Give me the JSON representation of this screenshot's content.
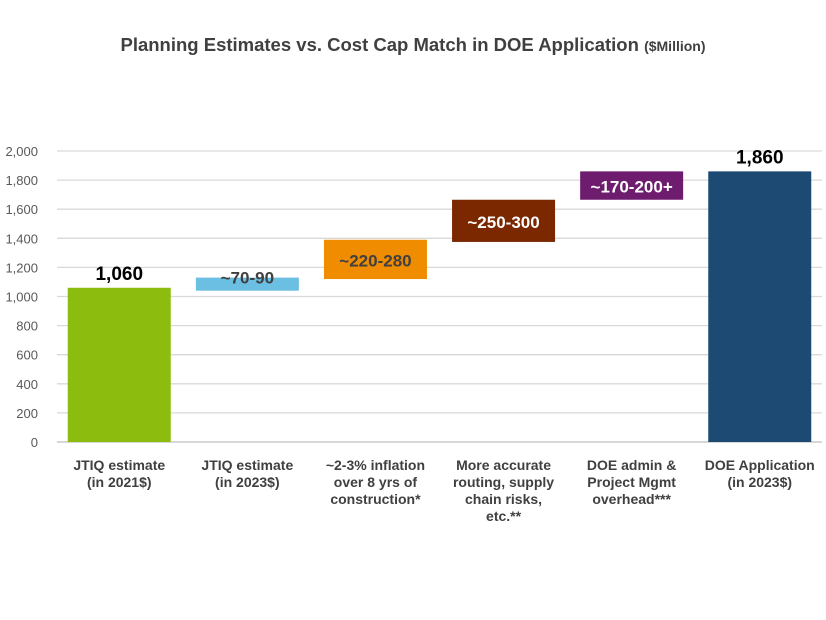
{
  "chart_data": {
    "type": "waterfall",
    "title": "Planning Estimates vs. Cost Cap Match in DOE Application",
    "title_unit": "($Million)",
    "ylim": [
      0,
      2000
    ],
    "yticks": [
      "0",
      "200",
      "400",
      "600",
      "800",
      "1,000",
      "1,200",
      "1,400",
      "1,600",
      "1,800",
      "2,000"
    ],
    "grid": true,
    "categories": [
      "JTIQ estimate\n(in 2021$)",
      "JTIQ estimate\n(in 2023$)",
      "~2-3% inflation\nover 8 yrs of\nconstruction*",
      "More accurate\nrouting, supply\nchain risks,\netc.**",
      "DOE admin &\nProject Mgmt\noverhead***",
      "DOE Application\n(in 2023$)"
    ],
    "bars": [
      {
        "low": 0,
        "high": 1060,
        "label": "1,060",
        "color": "#8cbd0e",
        "label_color": "#000000",
        "label_pos": "above"
      },
      {
        "low": 1040,
        "high": 1130,
        "label": "~70-90",
        "color": "#6bbfe3",
        "label_color": "#404040",
        "label_pos": "top"
      },
      {
        "low": 1120,
        "high": 1390,
        "label": "~220-280",
        "color": "#f08c00",
        "label_color": "#404040",
        "label_pos": "inside"
      },
      {
        "low": 1375,
        "high": 1665,
        "label": "~250-300",
        "color": "#7b2700",
        "label_color": "#ffffff",
        "label_pos": "inside"
      },
      {
        "low": 1665,
        "high": 1860,
        "label": "~170-200+",
        "color": "#6e1c6e",
        "label_color": "#ffffff",
        "label_pos": "inside"
      },
      {
        "low": 0,
        "high": 1860,
        "label": "1,860",
        "color": "#1c4a73",
        "label_color": "#000000",
        "label_pos": "above"
      }
    ]
  }
}
